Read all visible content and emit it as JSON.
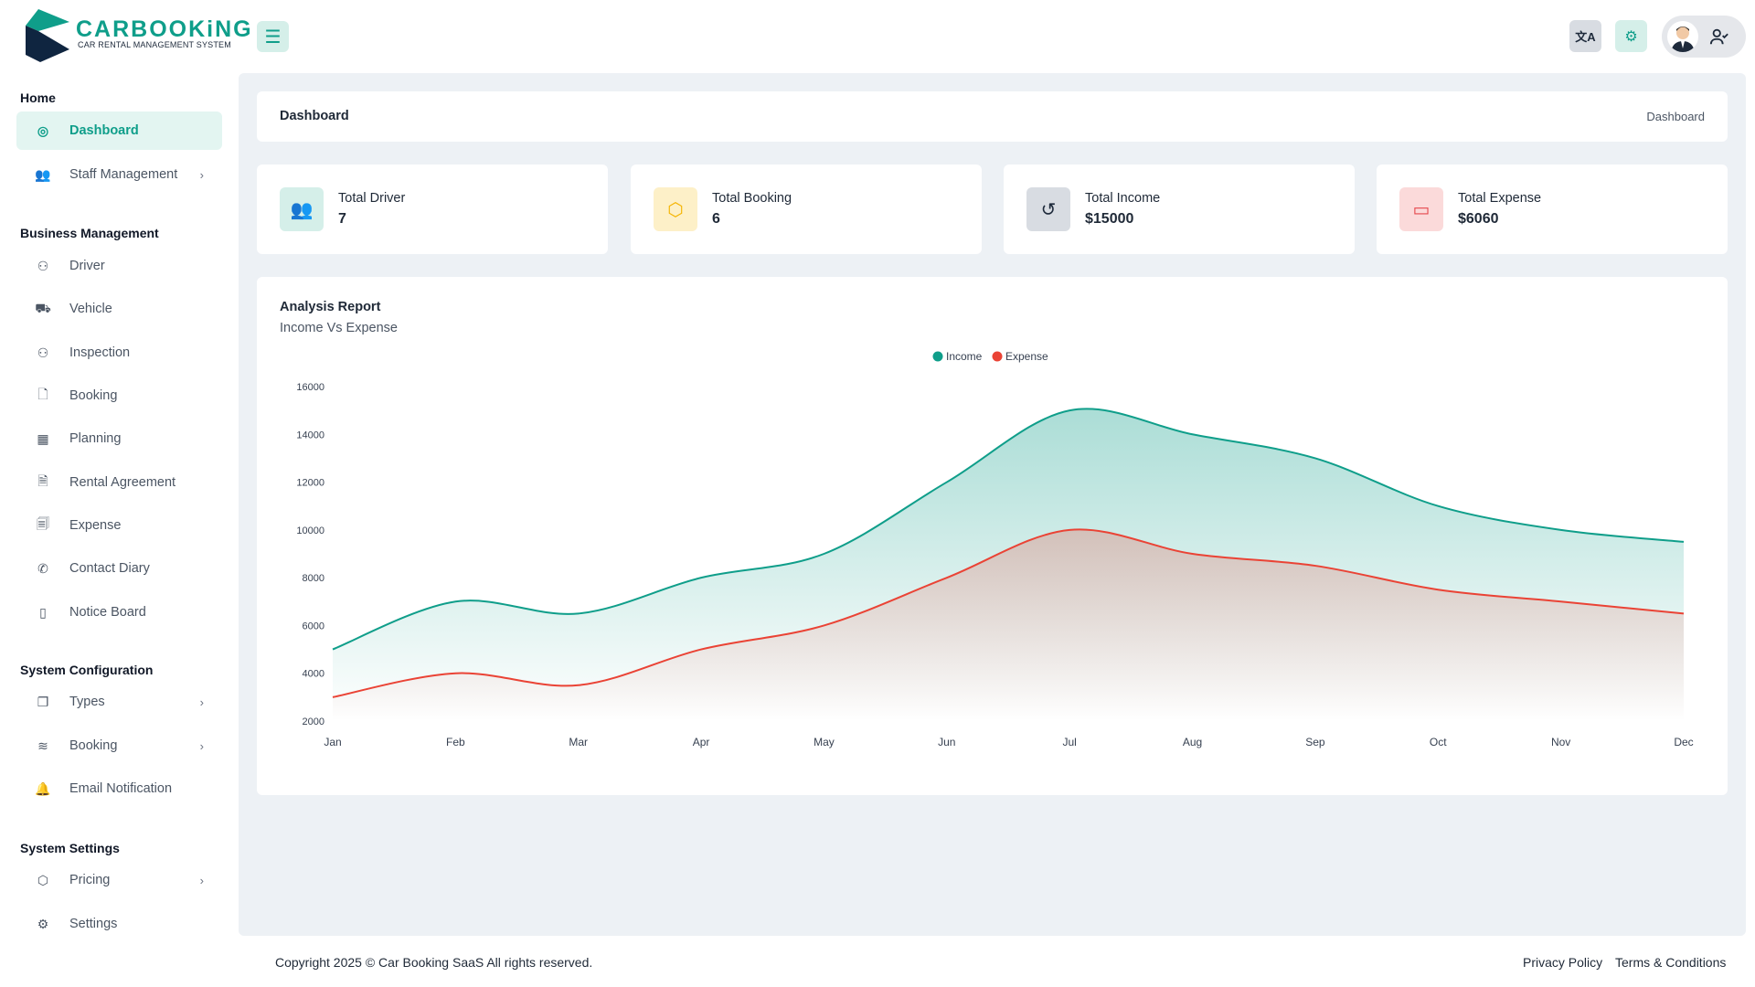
{
  "app": {
    "logo_title": "CARBOOKiNG",
    "logo_subtitle": "CAR RENTAL MANAGEMENT SYSTEM"
  },
  "header": {
    "icons": [
      "menu-icon",
      "translate-icon",
      "gear-icon",
      "avatar",
      "user-check-icon"
    ]
  },
  "sidebar": {
    "sections": [
      {
        "title": "Home",
        "items": [
          {
            "label": "Dashboard",
            "icon": "dashboard-icon",
            "active": true
          },
          {
            "label": "Staff Management",
            "icon": "users-icon",
            "chevron": true
          }
        ]
      },
      {
        "title": "Business Management",
        "items": [
          {
            "label": "Driver",
            "icon": "user-check-icon"
          },
          {
            "label": "Vehicle",
            "icon": "truck-icon"
          },
          {
            "label": "Inspection",
            "icon": "user-check-icon"
          },
          {
            "label": "Booking",
            "icon": "file-icon"
          },
          {
            "label": "Planning",
            "icon": "calendar-icon"
          },
          {
            "label": "Rental Agreement",
            "icon": "file-plus-icon"
          },
          {
            "label": "Expense",
            "icon": "file-text-icon"
          },
          {
            "label": "Contact Diary",
            "icon": "phone-icon"
          },
          {
            "label": "Notice Board",
            "icon": "book-icon"
          }
        ]
      },
      {
        "title": "System Configuration",
        "items": [
          {
            "label": "Types",
            "icon": "copy-icon",
            "chevron": true
          },
          {
            "label": "Booking",
            "icon": "sliders-icon",
            "chevron": true
          },
          {
            "label": "Email Notification",
            "icon": "bell-icon"
          }
        ]
      },
      {
        "title": "System Settings",
        "items": [
          {
            "label": "Pricing",
            "icon": "package-icon",
            "chevron": true
          },
          {
            "label": "Settings",
            "icon": "gear-icon"
          }
        ]
      }
    ]
  },
  "page": {
    "title": "Dashboard",
    "breadcrumb": "Dashboard"
  },
  "stats": [
    {
      "label": "Total Driver",
      "value": "7",
      "icon": "users-icon",
      "color": "#0f9e8a",
      "bg": "#d5efe9"
    },
    {
      "label": "Total Booking",
      "value": "6",
      "icon": "package-icon",
      "color": "#f5b400",
      "bg": "#fdf0c8"
    },
    {
      "label": "Total Income",
      "value": "$15000",
      "icon": "history-icon",
      "color": "#1e2a3b",
      "bg": "#d8dce2"
    },
    {
      "label": "Total Expense",
      "value": "$6060",
      "icon": "credit-card-icon",
      "color": "#e5484d",
      "bg": "#fbdada"
    }
  ],
  "report": {
    "title": "Analysis Report",
    "subtitle": "Income Vs Expense"
  },
  "chart_data": {
    "type": "area",
    "categories": [
      "Jan",
      "Feb",
      "Mar",
      "Apr",
      "May",
      "Jun",
      "Jul",
      "Aug",
      "Sep",
      "Oct",
      "Nov",
      "Dec"
    ],
    "series": [
      {
        "name": "Income",
        "color": "#0f9e8a",
        "values": [
          5000,
          7000,
          6500,
          8000,
          9000,
          12000,
          15000,
          14000,
          13000,
          11000,
          10000,
          9500
        ]
      },
      {
        "name": "Expense",
        "color": "#ea4335",
        "values": [
          3000,
          4000,
          3500,
          5000,
          6000,
          8000,
          10000,
          9000,
          8500,
          7500,
          7000,
          6500
        ]
      }
    ],
    "yticks": [
      16000,
      14000,
      12000,
      10000,
      8000,
      6000,
      4000,
      2000
    ],
    "ylim": [
      2000,
      16000
    ],
    "legend": "top-center",
    "grid": false
  },
  "footer": {
    "copyright": "Copyright 2025 © Car Booking SaaS All rights reserved.",
    "links": [
      "Privacy Policy",
      "Terms & Conditions"
    ]
  }
}
